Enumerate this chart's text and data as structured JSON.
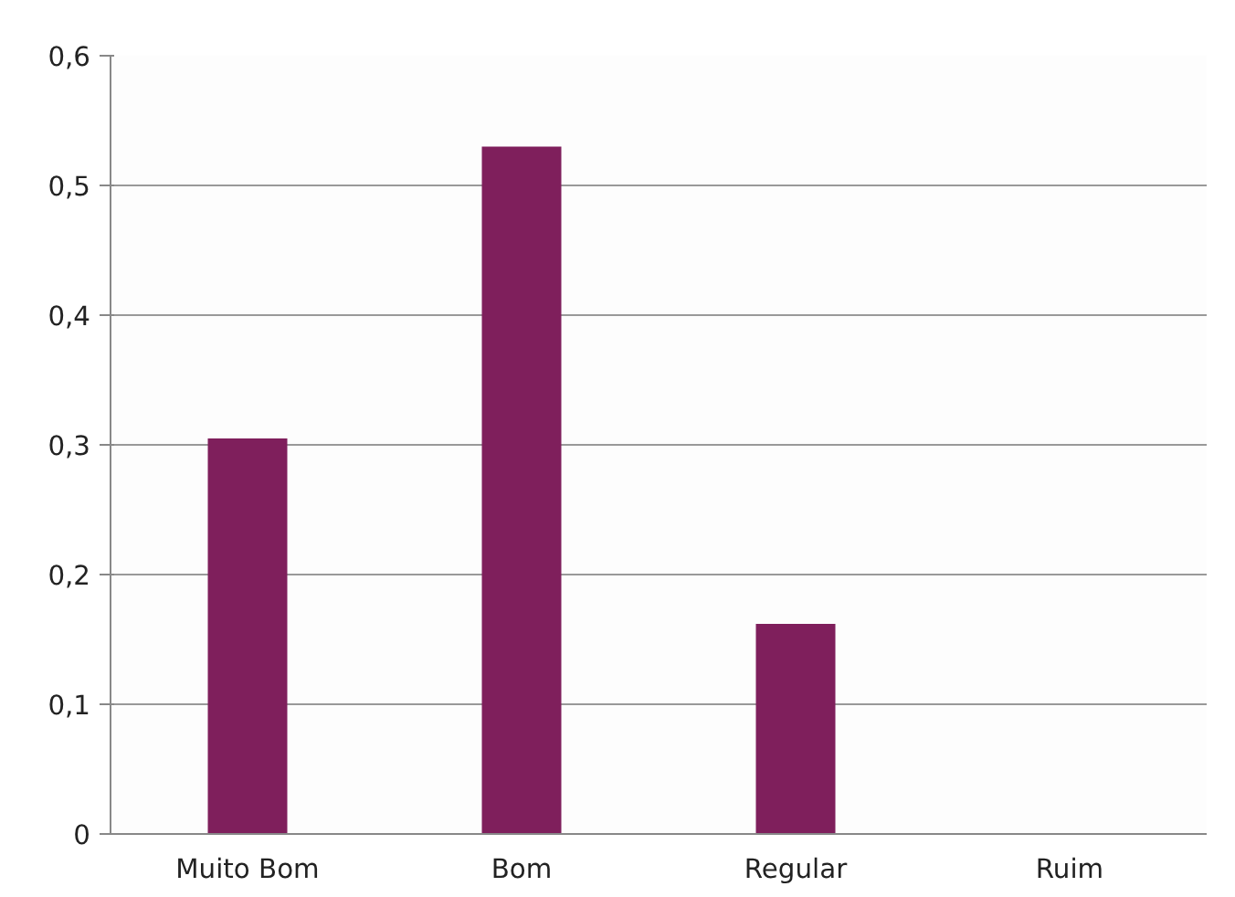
{
  "chart_data": {
    "type": "bar",
    "categories": [
      "Muito Bom",
      "Bom",
      "Regular",
      "Ruim"
    ],
    "values": [
      0.305,
      0.53,
      0.162,
      0
    ],
    "color": "#7f1f5c",
    "ylim": [
      0,
      0.6
    ],
    "yticks": [
      0,
      {
        "value": 0.1,
        "label": "0,1"
      },
      {
        "value": 0.2,
        "label": "0,2"
      },
      {
        "value": 0.3,
        "label": "0,3"
      },
      {
        "value": 0.4,
        "label": "0,4"
      },
      {
        "value": 0.5,
        "label": "0,5"
      },
      {
        "value": 0.6,
        "label": "0,6"
      }
    ],
    "grid": "y"
  }
}
